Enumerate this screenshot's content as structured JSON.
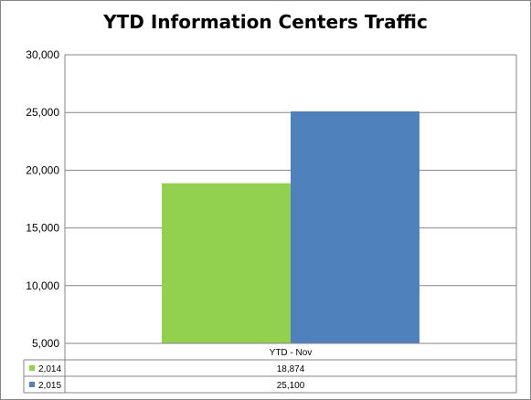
{
  "chart_data": {
    "type": "bar",
    "title": "YTD Information Centers Traffic",
    "categories": [
      "YTD - Nov"
    ],
    "series": [
      {
        "name": "2,014",
        "values": [
          18874
        ],
        "value_label": "18,874",
        "color": "#92D050"
      },
      {
        "name": "2,015",
        "values": [
          25100
        ],
        "value_label": "25,100",
        "color": "#4F81BD"
      }
    ],
    "ylim": [
      5000,
      30000
    ],
    "yticks": [
      "5,000",
      "10,000",
      "15,000",
      "20,000",
      "25,000",
      "30,000"
    ],
    "grid": true,
    "legend": "data-table"
  }
}
